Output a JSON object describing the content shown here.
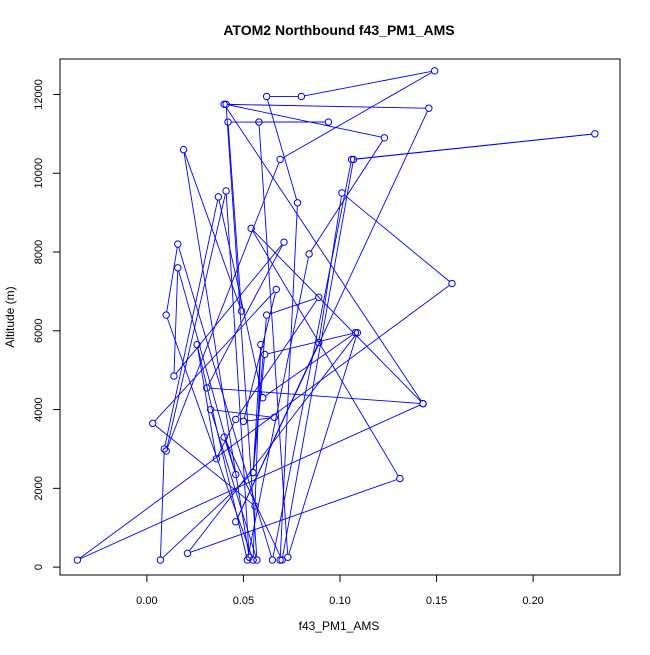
{
  "chart_data": {
    "type": "line",
    "title": "ATOM2 Northbound f43_PM1_AMS",
    "xlabel": "f43_PM1_AMS",
    "ylabel": "Altitude (m)",
    "xlim": [
      -0.045,
      0.245
    ],
    "ylim": [
      -200,
      12900
    ],
    "x_ticks": [
      "0.00",
      "0.05",
      "0.10",
      "0.15",
      "0.20"
    ],
    "y_ticks": [
      "0",
      "2000",
      "4000",
      "6000",
      "8000",
      "10000",
      "12000"
    ],
    "grid": false,
    "legend": "none",
    "series_color": "#0000ff",
    "points": [
      [
        0.069,
        180
      ],
      [
        0.078,
        9250
      ],
      [
        0.062,
        11950
      ],
      [
        0.08,
        11950
      ],
      [
        0.149,
        12600
      ],
      [
        0.069,
        10350
      ],
      [
        0.01,
        2950
      ],
      [
        0.041,
        9550
      ],
      [
        0.053,
        250
      ],
      [
        0.019,
        10600
      ],
      [
        0.049,
        6500
      ],
      [
        0.042,
        11300
      ],
      [
        0.094,
        11300
      ],
      [
        0.058,
        11300
      ],
      [
        0.073,
        250
      ],
      [
        0.109,
        5950
      ],
      [
        0.021,
        350
      ],
      [
        0.131,
        2250
      ],
      [
        0.054,
        8600
      ],
      [
        0.143,
        4150
      ],
      [
        0.04,
        11750
      ],
      [
        0.146,
        11650
      ],
      [
        0.046,
        1150
      ],
      [
        0.089,
        5700
      ],
      [
        0.101,
        9500
      ],
      [
        0.158,
        7200
      ],
      [
        -0.036,
        180
      ],
      [
        0.143,
        4150
      ],
      [
        0.031,
        4550
      ],
      [
        0.071,
        8250
      ],
      [
        0.014,
        4850
      ],
      [
        0.016,
        7600
      ],
      [
        0.046,
        2350
      ],
      [
        0.04,
        3300
      ],
      [
        0.07,
        180
      ],
      [
        0.107,
        10350
      ],
      [
        0.232,
        11000
      ],
      [
        0.106,
        10350
      ],
      [
        0.065,
        180
      ],
      [
        0.016,
        8200
      ],
      [
        0.01,
        6400
      ],
      [
        0.055,
        180
      ],
      [
        0.059,
        5650
      ],
      [
        0.055,
        2400
      ],
      [
        0.007,
        180
      ],
      [
        0.009,
        3000
      ],
      [
        0.037,
        9400
      ],
      [
        0.06,
        4300
      ],
      [
        0.108,
        5950
      ],
      [
        0.061,
        5400
      ],
      [
        0.055,
        2400
      ],
      [
        0.062,
        6400
      ],
      [
        0.089,
        6850
      ],
      [
        0.046,
        3750
      ],
      [
        0.036,
        2750
      ],
      [
        0.026,
        5650
      ],
      [
        0.052,
        180
      ],
      [
        0.084,
        7950
      ],
      [
        0.123,
        10900
      ],
      [
        0.041,
        11750
      ],
      [
        0.057,
        180
      ],
      [
        0.033,
        4000
      ],
      [
        0.066,
        3800
      ],
      [
        0.05,
        3700
      ],
      [
        0.067,
        7050
      ],
      [
        0.003,
        3650
      ],
      [
        0.056,
        1550
      ]
    ]
  }
}
